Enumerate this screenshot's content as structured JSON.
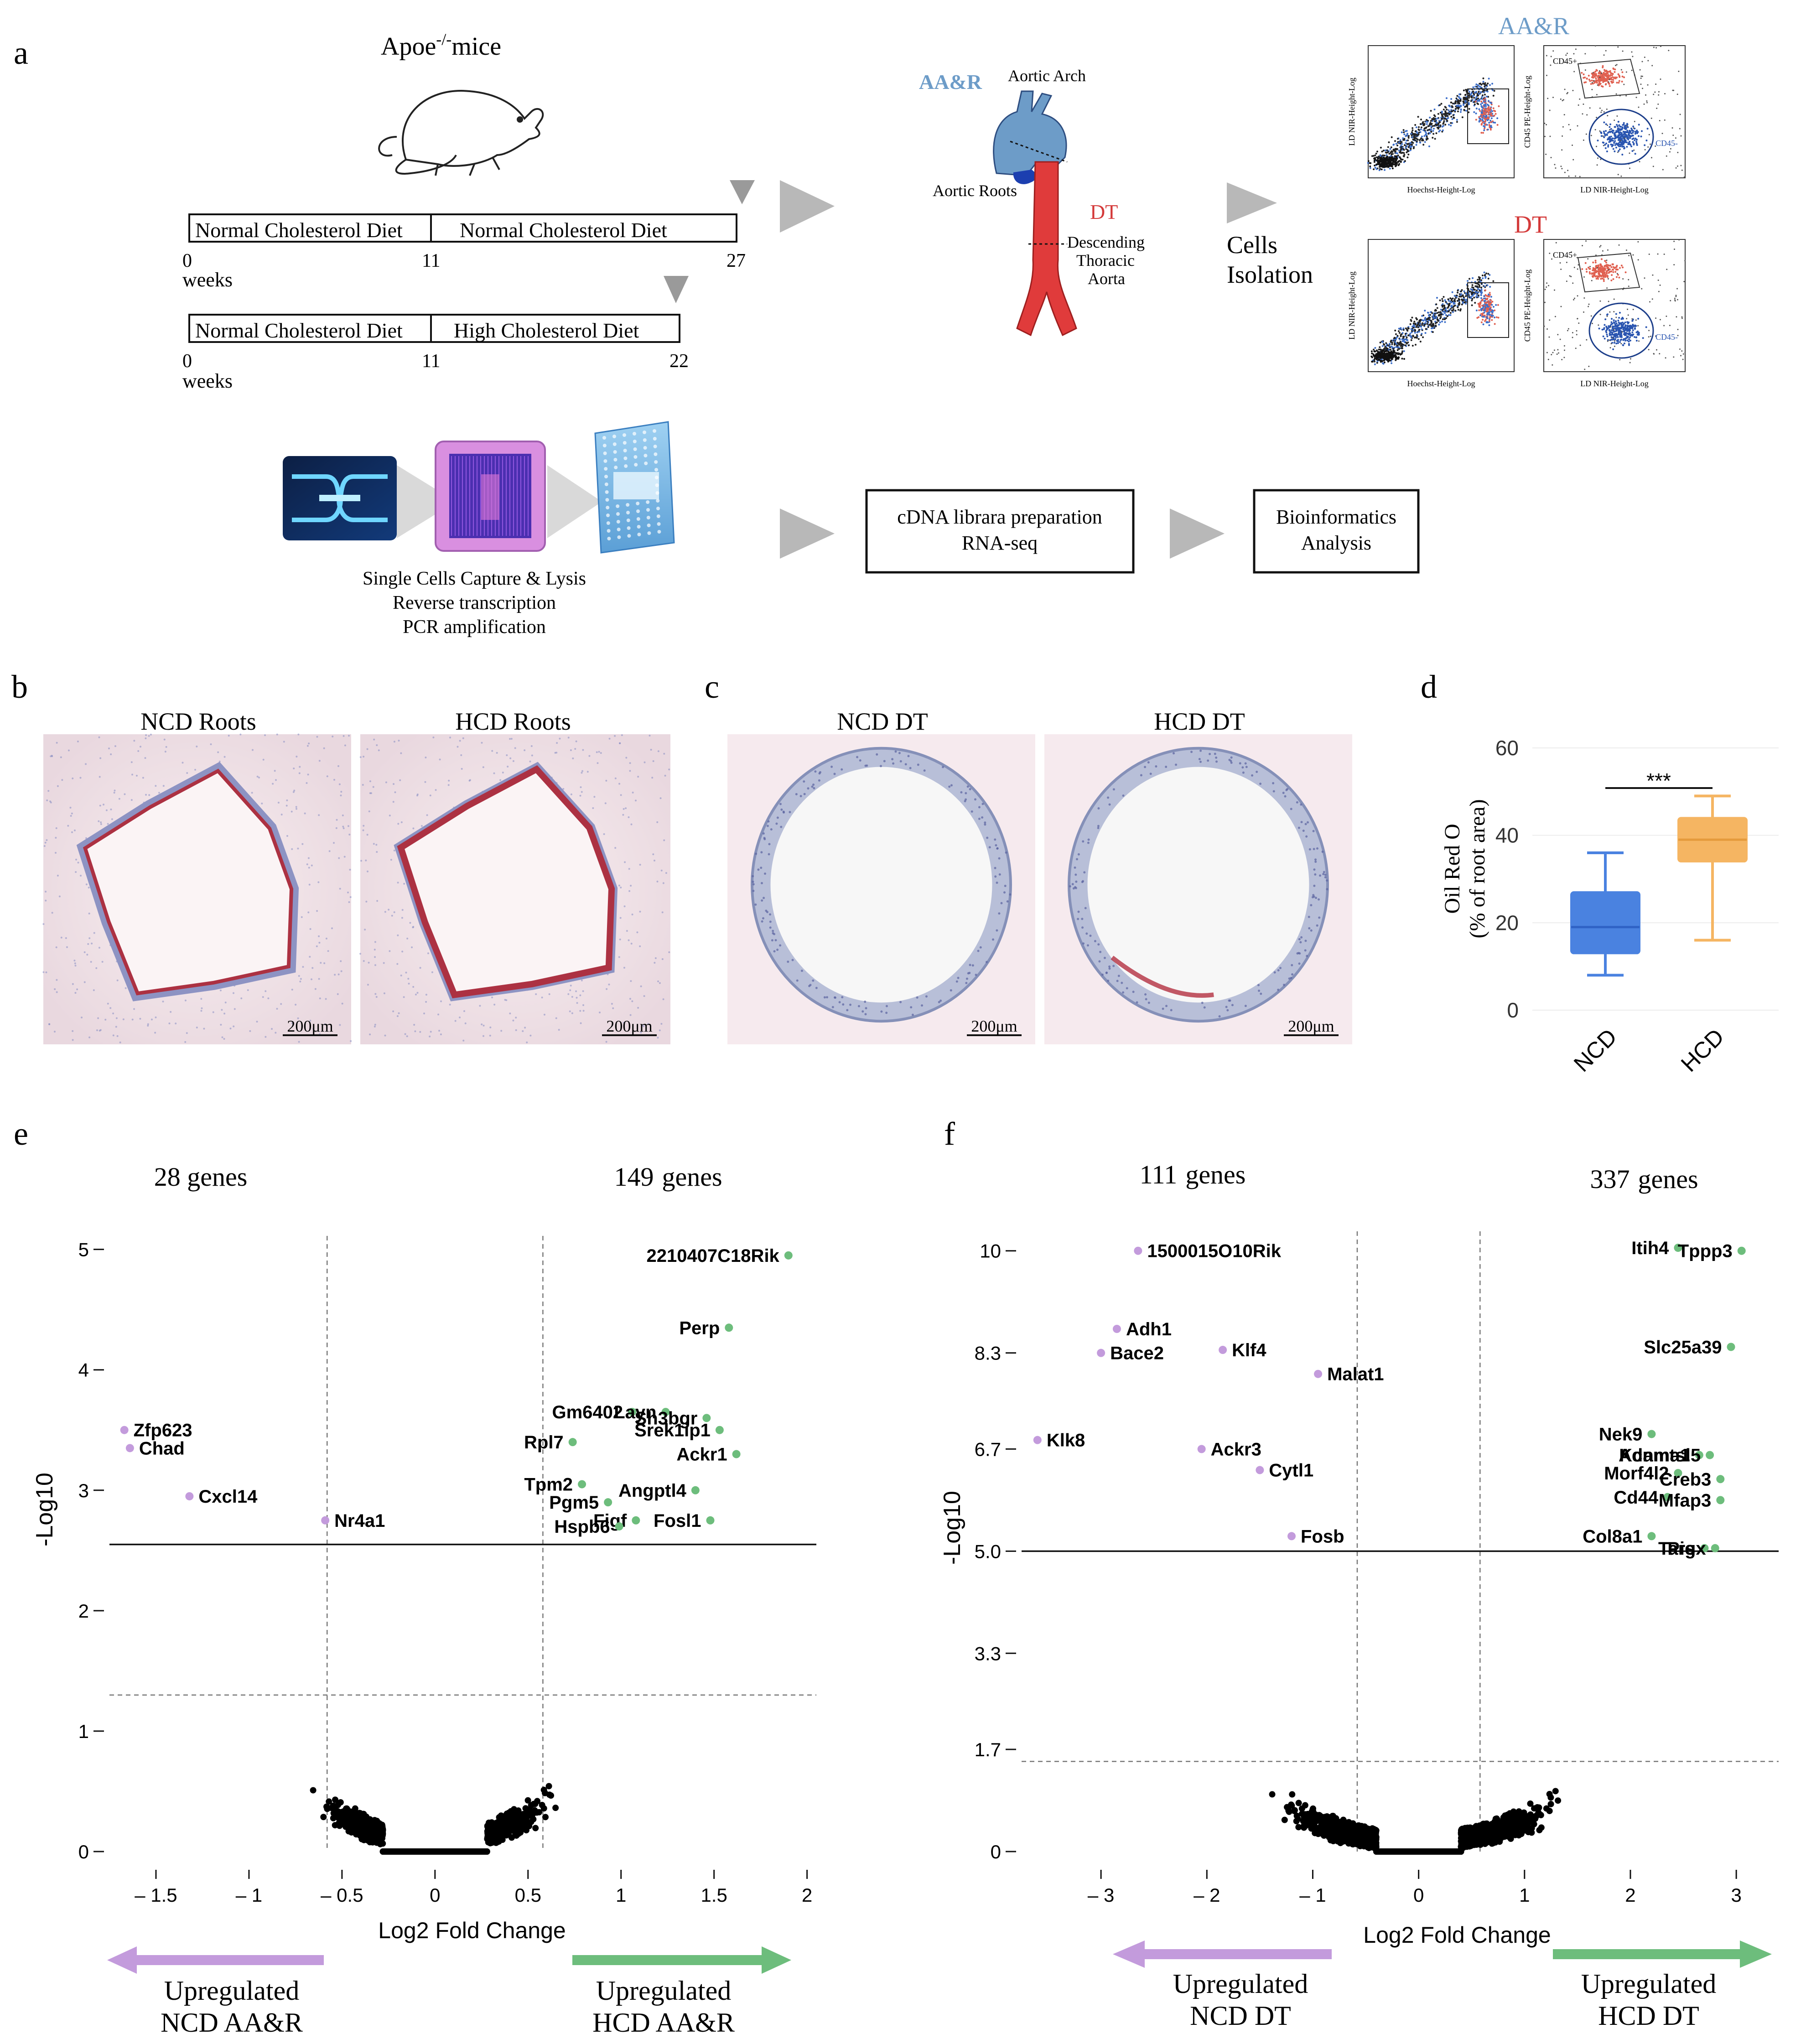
{
  "panel_labels": {
    "a": "a",
    "b": "b",
    "c": "c",
    "d": "d",
    "e": "e",
    "f": "f"
  },
  "panel_a": {
    "mouse_title": "Apoe",
    "mouse_title_sup": "-/-",
    "mouse_title_suffix": "mice",
    "timeline1": {
      "seg1": "Normal Cholesterol Diet",
      "seg2": "Normal Cholesterol Diet",
      "t0": "0",
      "t1": "11",
      "t2": "27",
      "unit": "weeks"
    },
    "timeline2": {
      "seg1": "Normal Cholesterol Diet",
      "seg2": "High Cholesterol Diet",
      "t0": "0",
      "t1": "11",
      "t2": "22",
      "unit": "weeks"
    },
    "aorta": {
      "aar_label": "AA&R",
      "arch_label": "Aortic Arch",
      "roots_label": "Aortic Roots",
      "dt_label": "DT",
      "desc1": "Descending",
      "desc2": "Thoracic",
      "desc3": "Aorta"
    },
    "cells1": "Cells",
    "cells2": "Isolation",
    "flow": {
      "aar_title": "AA&R",
      "dt_title": "DT",
      "ylabel1": "LD NIR-Height-Log",
      "xlabel1": "Hoechst-Height-Log",
      "ylabel2": "CD45 PE-Height-Log",
      "xlabel2": "LD NIR-Height-Log",
      "cd45pos": "CD45+",
      "cd45neg": "CD45-"
    },
    "capture1": "Single Cells Capture & Lysis",
    "capture2": "Reverse transcription",
    "capture3": "PCR amplification",
    "box1_line1": "cDNA librara preparation",
    "box1_line2": "RNA-seq",
    "box2_line1": "Bioinformatics",
    "box2_line2": "Analysis"
  },
  "panel_b": {
    "left_title": "NCD Roots",
    "right_title": "HCD Roots",
    "scale": "200μm"
  },
  "panel_c": {
    "left_title": "NCD DT",
    "right_title": "HCD DT",
    "scale": "200μm"
  },
  "panel_d": {
    "ylabel1": "Oil Red O",
    "ylabel2": "(% of root area)",
    "significance": "***"
  },
  "panel_e": {
    "left_count": "28 genes",
    "right_count_n": "149",
    "right_count_word": "genes",
    "xlabel": "Log2  Fold Change",
    "ylabel": "-Log10",
    "arrow_left1": "Upregulated",
    "arrow_left2": "NCD AA&R",
    "arrow_right1": "Upregulated",
    "arrow_right2": "HCD AA&R"
  },
  "panel_f": {
    "left_count_n": "111",
    "left_count_word": "genes",
    "right_count_n": "337",
    "right_count_word": "genes",
    "xlabel": "Log2  Fold Change",
    "ylabel": "-Log10",
    "arrow_left1": "Upregulated",
    "arrow_left2": "NCD DT",
    "arrow_right1": "Upregulated",
    "arrow_right2": "HCD DT"
  },
  "colors": {
    "down": "#c39bdc",
    "up": "#6dbd7c",
    "ns": "#000000",
    "ncd_box": "#4a82e0",
    "hcd_box": "#f5b562",
    "aar_blue": "#6d9cc8",
    "dt_red": "#e03b3b",
    "arrow_gray": "#b8b8b8"
  },
  "chart_data": [
    {
      "type": "box",
      "panel": "d",
      "categories": [
        "NCD",
        "HCD"
      ],
      "ylim": [
        0,
        60
      ],
      "yticks": [
        0,
        20,
        40,
        60
      ],
      "ylabel": "Oil Red O (% of root area)",
      "series": [
        {
          "name": "NCD",
          "min": 8,
          "q1": 13,
          "median": 19,
          "q3": 27,
          "max": 36
        },
        {
          "name": "HCD",
          "min": 16,
          "q1": 34,
          "median": 39,
          "q3": 44,
          "max": 49
        }
      ],
      "significance": "***"
    },
    {
      "type": "scatter",
      "panel": "e",
      "xlabel": "Log2  Fold Change",
      "ylabel": "-Log10",
      "xlim": [
        -1.75,
        2.05
      ],
      "ylim": [
        0,
        5.15
      ],
      "xticks": [
        -1.5,
        -1,
        -0.5,
        0,
        0.5,
        1,
        1.5,
        2
      ],
      "yticks": [
        0,
        1,
        2,
        3,
        4,
        5
      ],
      "xtick_labels": [
        "– 1.5",
        "– 1",
        "– 0.5",
        "0",
        "0.5",
        "1",
        "1.5",
        "2"
      ],
      "fc_thresholds": [
        -0.58,
        0.58
      ],
      "p_threshold": 1.3,
      "fdr_line": 2.55,
      "labeled_genes": [
        {
          "gene": "2210407C18Rik",
          "x": 1.9,
          "y": 4.95,
          "group": "up"
        },
        {
          "gene": "Perp",
          "x": 1.58,
          "y": 4.35,
          "group": "up"
        },
        {
          "gene": "Gm6402",
          "x": 1.06,
          "y": 3.65,
          "group": "up"
        },
        {
          "gene": "Layn",
          "x": 1.24,
          "y": 3.65,
          "group": "up"
        },
        {
          "gene": "Srek1ip1",
          "x": 1.53,
          "y": 3.5,
          "group": "up"
        },
        {
          "gene": "Sh3bgr",
          "x": 1.46,
          "y": 3.6,
          "group": "up"
        },
        {
          "gene": "Rpl7",
          "x": 0.74,
          "y": 3.4,
          "group": "up"
        },
        {
          "gene": "Ackr1",
          "x": 1.62,
          "y": 3.3,
          "group": "up"
        },
        {
          "gene": "Tpm2",
          "x": 0.79,
          "y": 3.05,
          "group": "up"
        },
        {
          "gene": "Pgm5",
          "x": 0.93,
          "y": 2.9,
          "group": "up"
        },
        {
          "gene": "Angptl4",
          "x": 1.4,
          "y": 3.0,
          "group": "up"
        },
        {
          "gene": "Figf",
          "x": 1.08,
          "y": 2.75,
          "group": "up"
        },
        {
          "gene": "Hspb6",
          "x": 0.99,
          "y": 2.7,
          "group": "up"
        },
        {
          "gene": "Fosl1",
          "x": 1.48,
          "y": 2.75,
          "group": "up"
        },
        {
          "gene": "Zfp623",
          "x": -1.67,
          "y": 3.5,
          "group": "down"
        },
        {
          "gene": "Chad",
          "x": -1.64,
          "y": 3.35,
          "group": "down"
        },
        {
          "gene": "Cxcl14",
          "x": -1.32,
          "y": 2.95,
          "group": "down"
        },
        {
          "gene": "Nr4a1",
          "x": -0.59,
          "y": 2.75,
          "group": "down"
        }
      ],
      "group_counts": {
        "down": 28,
        "up": 149
      }
    },
    {
      "type": "scatter",
      "panel": "f",
      "xlabel": "Log2  Fold Change",
      "ylabel": "-Log10",
      "xlim": [
        -3.75,
        3.4
      ],
      "ylim": [
        0,
        10.4
      ],
      "xticks": [
        -3,
        -2,
        -1,
        0,
        1,
        2,
        3
      ],
      "yticks": [
        0,
        1.7,
        3.3,
        5.0,
        6.7,
        8.3,
        10
      ],
      "xtick_labels": [
        "– 3",
        "– 2",
        "– 1",
        "0",
        "1",
        "2",
        "3"
      ],
      "ytick_labels": [
        "0",
        "1.7",
        "3.3",
        "5.0",
        "6.7",
        "8.3",
        "10"
      ],
      "fc_thresholds": [
        -0.58,
        0.58
      ],
      "p_threshold": 1.5,
      "fdr_line": 5.0,
      "labeled_genes": [
        {
          "gene": "1500015O10Rik",
          "x": -2.65,
          "y": 10.0,
          "group": "down"
        },
        {
          "gene": "Adh1",
          "x": -2.85,
          "y": 8.7,
          "group": "down"
        },
        {
          "gene": "Bace2",
          "x": -3.0,
          "y": 8.3,
          "group": "down"
        },
        {
          "gene": "Klf4",
          "x": -1.85,
          "y": 8.35,
          "group": "down"
        },
        {
          "gene": "Malat1",
          "x": -0.95,
          "y": 7.95,
          "group": "down"
        },
        {
          "gene": "Klk8",
          "x": -3.6,
          "y": 6.85,
          "group": "down"
        },
        {
          "gene": "Ackr3",
          "x": -2.05,
          "y": 6.7,
          "group": "down"
        },
        {
          "gene": "Cytl1",
          "x": -1.5,
          "y": 6.35,
          "group": "down"
        },
        {
          "gene": "Fosb",
          "x": -1.2,
          "y": 5.25,
          "group": "down"
        },
        {
          "gene": "Itih4",
          "x": 2.45,
          "y": 10.05,
          "group": "up"
        },
        {
          "gene": "Tppp3",
          "x": 3.05,
          "y": 10.0,
          "group": "up"
        },
        {
          "gene": "Slc25a39",
          "x": 2.95,
          "y": 8.4,
          "group": "up"
        },
        {
          "gene": "Nek9",
          "x": 2.2,
          "y": 6.95,
          "group": "up"
        },
        {
          "gene": "Kcnma1",
          "x": 2.65,
          "y": 6.6,
          "group": "up"
        },
        {
          "gene": "Adamtsl5",
          "x": 2.75,
          "y": 6.6,
          "group": "up"
        },
        {
          "gene": "Morf4l2",
          "x": 2.45,
          "y": 6.3,
          "group": "up"
        },
        {
          "gene": "Creb3",
          "x": 2.85,
          "y": 6.2,
          "group": "up"
        },
        {
          "gene": "Cd44",
          "x": 2.35,
          "y": 5.9,
          "group": "up"
        },
        {
          "gene": "Mfap3",
          "x": 2.85,
          "y": 5.85,
          "group": "up"
        },
        {
          "gene": "Col8a1",
          "x": 2.2,
          "y": 5.25,
          "group": "up"
        },
        {
          "gene": "Tars",
          "x": 2.7,
          "y": 5.05,
          "group": "up"
        },
        {
          "gene": "Pigx",
          "x": 2.8,
          "y": 5.05,
          "group": "up"
        }
      ],
      "group_counts": {
        "down": 111,
        "up": 337
      }
    }
  ]
}
